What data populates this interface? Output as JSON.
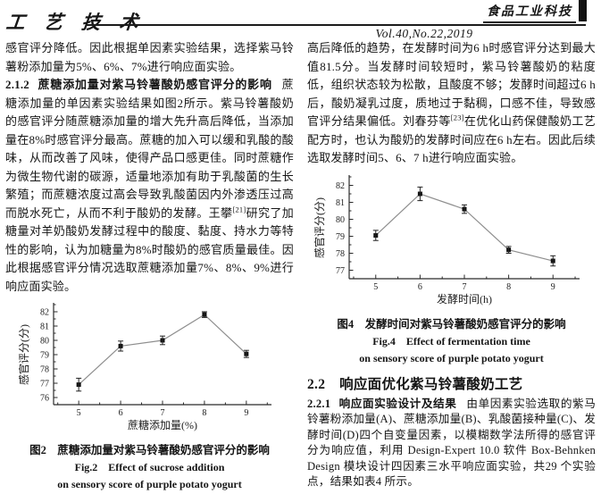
{
  "header": {
    "section_label": "工 艺 技 术",
    "journal_name": "食品工业科技",
    "volume": "Vol.40,No.22,2019"
  },
  "left_column": {
    "para_continuation": "感官评分降低。因此根据单因素实验结果，选择紫马铃薯粉添加量为5%、6%、7%进行响应面实验。",
    "sec212_num": "2.1.2",
    "sec212_title": "蔗糖添加量对紫马铃薯酸奶感官评分的影响",
    "sec212_body": "蔗糖添加量的单因素实验结果如图2所示。紫马铃薯酸奶的感官评分随蔗糖添加量的增大先升高后降低，当添加量在8%时感官评分最高。蔗糖的加入可以缓和乳酸的酸味，从而改善了风味，使得产品口感更佳。同时蔗糖作为微生物代谢的碳源，适量地添加有助于乳酸菌的生长繁殖；而蔗糖浓度过高会导致乳酸菌因内外渗透压过高而脱水死亡，从而不利于酸奶的发酵。王攀[21]研究了加糖量对羊奶酸奶发酵过程中的酸度、黏度、持水力等特性的影响，认为加糖量为8%时酸奶的感官质量最佳。因此根据感官评分情况选取蔗糖添加量7%、8%、9%进行响应面实验。",
    "fig2_caption_zh": "图2　蔗糖添加量对紫马铃薯酸奶感官评分的影响",
    "fig2_caption_en_line1": "Fig.2　Effect of sucrose addition",
    "fig2_caption_en_line2": "on sensory score of purple potato yogurt"
  },
  "right_column": {
    "para_continuation": "高后降低的趋势，在发酵时间为6 h时感官评分达到最大值81.5分。当发酵时间较短时，紫马铃薯酸奶的粘度低，组织状态较为松散，且酸度不够；发酵时间超过6 h后，酸奶凝乳过度，质地过于黏稠，口感不佳，导致感官评分结果偏低。刘春芬等[23]在优化山药保健酸奶工艺配方时，也认为酸奶的发酵时间应在6 h左右。因此后续选取发酵时间5、6、7 h进行响应面实验。",
    "fig4_caption_zh": "图4　发酵时间对紫马铃薯酸奶感官评分的影响",
    "fig4_caption_en_line1": "Fig.4　Effect of fermentation time",
    "fig4_caption_en_line2": "on sensory score of purple potato yogurt",
    "sec22_heading": "2.2　响应面优化紫马铃薯酸奶工艺",
    "sec221_num": "2.2.1",
    "sec221_title": "响应面实验设计及结果",
    "sec221_body": "由单因素实验选取的紫马铃薯粉添加量(A)、蔗糖添加量(B)、乳酸菌接种量(C)、发酵时间(D)四个自变量因素，以模糊数学法所得的感官评分为响应值，利用 Design-Expert 10.0 软件 Box-Behnken Design 模块设计四因素三水平响应面实验，共29 个实验点，结果如表4 所示。"
  },
  "chart_data": [
    {
      "id": "fig2",
      "type": "line",
      "title": "图2 蔗糖添加量对紫马铃薯酸奶感官评分的影响",
      "x": [
        5,
        6,
        7,
        8,
        9
      ],
      "series": [
        {
          "name": "感官评分",
          "values": [
            76.9,
            79.6,
            80.0,
            81.8,
            79.05
          ],
          "errors": [
            0.45,
            0.35,
            0.3,
            0.2,
            0.25
          ]
        }
      ],
      "xlabel": "蔗糖添加量(%)",
      "ylabel": "感官评分(分)",
      "xlim": [
        4.4,
        9.6
      ],
      "ylim": [
        75.5,
        82.5
      ],
      "yticks": [
        76,
        77,
        78,
        79,
        80,
        81,
        82
      ],
      "grid": false,
      "legend": "none",
      "marker": "square",
      "line_color": "#8e8e8e",
      "marker_color": "#111111"
    },
    {
      "id": "fig4",
      "type": "line",
      "title": "图4 发酵时间对紫马铃薯酸奶感官评分的影响",
      "x": [
        5,
        6,
        7,
        8,
        9
      ],
      "series": [
        {
          "name": "感官评分",
          "values": [
            79.05,
            81.5,
            80.6,
            78.2,
            77.55
          ],
          "errors": [
            0.3,
            0.4,
            0.25,
            0.2,
            0.3
          ]
        }
      ],
      "xlabel": "发酵时间(h)",
      "ylabel": "感官评分(分)",
      "xlim": [
        4.4,
        9.6
      ],
      "ylim": [
        76.5,
        82.5
      ],
      "yticks": [
        77,
        78,
        79,
        80,
        81,
        82
      ],
      "grid": false,
      "legend": "none",
      "marker": "square",
      "line_color": "#8e8e8e",
      "marker_color": "#111111"
    }
  ]
}
